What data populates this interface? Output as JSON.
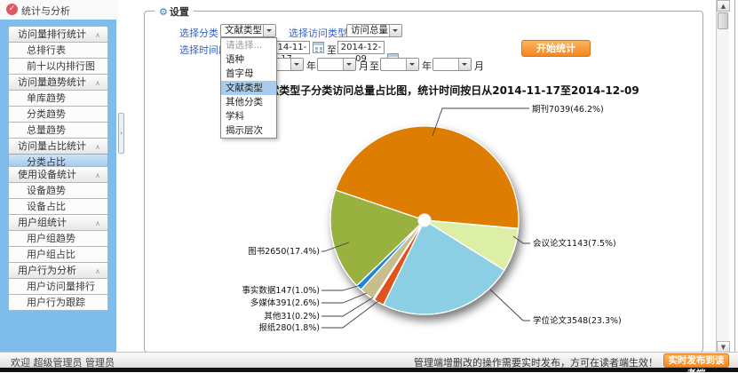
{
  "sidebar": {
    "title": "统计与分析",
    "groups": [
      {
        "label": "访问量排行统计",
        "items": [
          {
            "label": "总排行表"
          },
          {
            "label": "前十以内排行图"
          }
        ]
      },
      {
        "label": "访问量趋势统计",
        "items": [
          {
            "label": "单库趋势"
          },
          {
            "label": "分类趋势"
          },
          {
            "label": "总量趋势"
          }
        ]
      },
      {
        "label": "访问量占比统计",
        "items": [
          {
            "label": "分类占比",
            "selected": true
          }
        ]
      },
      {
        "label": "使用设备统计",
        "items": [
          {
            "label": "设备趋势"
          },
          {
            "label": "设备占比"
          }
        ]
      },
      {
        "label": "用户组统计",
        "items": [
          {
            "label": "用户组趋势"
          },
          {
            "label": "用户组占比"
          }
        ]
      },
      {
        "label": "用户行为分析",
        "items": [
          {
            "label": "用户访问量排行"
          },
          {
            "label": "用户行为跟踪"
          }
        ]
      }
    ]
  },
  "settings": {
    "legend": "设置",
    "category_label": "选择分类：",
    "category_value": "文献类型",
    "visit_type_label": "选择访问类型：",
    "visit_type_value": "访问总量",
    "period_label": "选择时间段",
    "date_from": "2014-11-17",
    "date_to": "2014-12-09",
    "to_label": "至",
    "year_label": "年",
    "month_label": "月",
    "start_button": "开始统计",
    "dropdown_options": [
      {
        "label": "请选择...",
        "muted": true
      },
      {
        "label": "语种"
      },
      {
        "label": "首字母"
      },
      {
        "label": "文献类型",
        "selected": true
      },
      {
        "label": "其他分类"
      },
      {
        "label": "学科"
      },
      {
        "label": "揭示层次"
      }
    ]
  },
  "chart_data": {
    "type": "pie",
    "title": "文献类型子分类访问总量占比图，统计时间按日从2014-11-17至2014-12-09",
    "legend_position": "none",
    "slices": [
      {
        "label": "期刊",
        "value": 7039,
        "pct": 46.2,
        "color": "#dd7d02"
      },
      {
        "label": "会议论文",
        "value": 1143,
        "pct": 7.5,
        "color": "#ddefa6"
      },
      {
        "label": "学位论文",
        "value": 3548,
        "pct": 23.3,
        "color": "#8ccee4"
      },
      {
        "label": "报纸",
        "value": 280,
        "pct": 1.8,
        "color": "#e0521d"
      },
      {
        "label": "其他",
        "value": 31,
        "pct": 0.2,
        "color": "#eeede4"
      },
      {
        "label": "多媒体",
        "value": 391,
        "pct": 2.6,
        "color": "#c7bd8d"
      },
      {
        "label": "事实数据",
        "value": 147,
        "pct": 1.0,
        "color": "#1c86d9"
      },
      {
        "label": "图书",
        "value": 2650,
        "pct": 17.4,
        "color": "#99b13f"
      }
    ],
    "label_format": "{label}{value}({pct}%)"
  },
  "statusbar": {
    "welcome": "欢迎  超级管理员 管理员",
    "notice": "管理端增删改的操作需要实时发布，方可在读者端生效！",
    "publish_button": "实时发布到读者端"
  }
}
